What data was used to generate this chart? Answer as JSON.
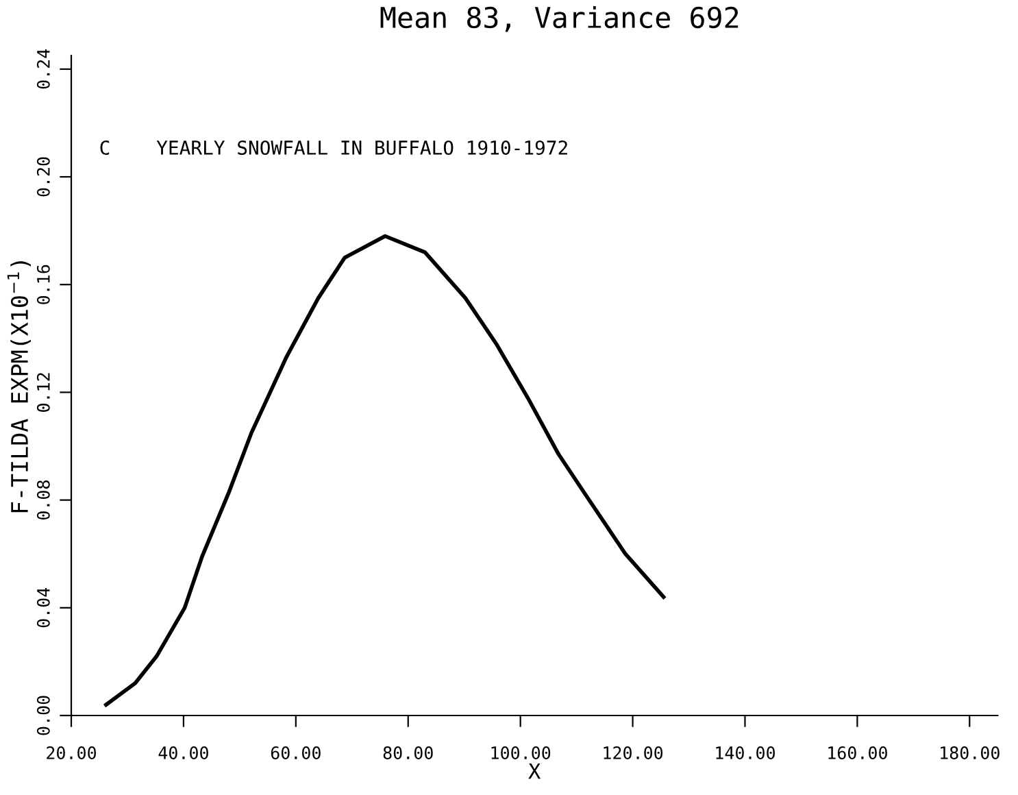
{
  "chart_data": {
    "type": "line",
    "title": "Mean 83, Variance 692",
    "xlabel": "X",
    "ylabel": "F-TILDA EXPM(X10$^{−1}$)",
    "annotations": [
      "C    YEARLY SNOWFALL IN BUFFALO 1910-1972"
    ],
    "x": [
      26.2,
      31.4,
      35.2,
      40.2,
      43.3,
      48.1,
      52.1,
      58.3,
      64.0,
      68.7,
      75.9,
      83.0,
      90.2,
      95.7,
      101.3,
      106.8,
      111.6,
      118.7,
      125.5
    ],
    "series": [
      {
        "color": "#000000",
        "values": [
          0.004,
          0.012,
          0.022,
          0.04,
          0.059,
          0.083,
          0.105,
          0.133,
          0.155,
          0.17,
          0.178,
          0.172,
          0.155,
          0.138,
          0.118,
          0.097,
          0.082,
          0.06,
          0.044
        ]
      }
    ],
    "xlim": [
      20,
      185
    ],
    "ylim": [
      0,
      0.245
    ],
    "xticks": [
      {
        "value": 20,
        "label": "20.00"
      },
      {
        "value": 40,
        "label": "40.00"
      },
      {
        "value": 60,
        "label": "60.00"
      },
      {
        "value": 80,
        "label": "80.00"
      },
      {
        "value": 100,
        "label": "100.00"
      },
      {
        "value": 120,
        "label": "120.00"
      },
      {
        "value": 140,
        "label": "140.00"
      },
      {
        "value": 160,
        "label": "160.00"
      },
      {
        "value": 180,
        "label": "180.00"
      }
    ],
    "yticks": [
      {
        "value": 0,
        "label": "0.00"
      },
      {
        "value": 0.04,
        "label": "0.04"
      },
      {
        "value": 0.08,
        "label": "0.08"
      },
      {
        "value": 0.12,
        "label": "0.12"
      },
      {
        "value": 0.16,
        "label": "0.16"
      },
      {
        "value": 0.2,
        "label": "0.20"
      },
      {
        "value": 0.24,
        "label": "0.24"
      }
    ],
    "grid": false,
    "legend": false,
    "marker": "none",
    "line_style": "solid"
  }
}
